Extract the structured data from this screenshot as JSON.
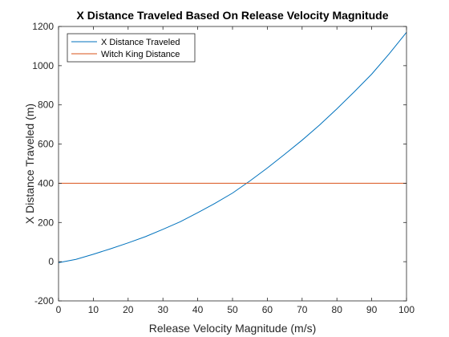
{
  "chart_data": {
    "type": "line",
    "title": "X Distance Traveled Based On Release Velocity Magnitude",
    "xlabel": "Release Velocity Magnitude (m/s)",
    "ylabel": "X Distance Traveled (m)",
    "xlim": [
      0,
      100
    ],
    "ylim": [
      -200,
      1200
    ],
    "xticks": [
      0,
      10,
      20,
      30,
      40,
      50,
      60,
      70,
      80,
      90,
      100
    ],
    "yticks": [
      -200,
      0,
      200,
      400,
      600,
      800,
      1000,
      1200
    ],
    "grid": false,
    "legend_position": "top-left",
    "series": [
      {
        "name": "X Distance Traveled",
        "color": "#0072BD",
        "x": [
          0,
          5,
          10,
          15,
          20,
          25,
          30,
          35,
          40,
          45,
          50,
          55,
          60,
          65,
          70,
          75,
          80,
          85,
          90,
          95,
          100
        ],
        "y": [
          -5,
          12,
          38,
          66,
          96,
          128,
          165,
          204,
          250,
          298,
          350,
          412,
          478,
          548,
          620,
          697,
          780,
          867,
          957,
          1060,
          1170
        ]
      },
      {
        "name": "Witch King Distance",
        "color": "#D95319",
        "x": [
          0,
          100
        ],
        "y": [
          400,
          400
        ]
      }
    ]
  }
}
